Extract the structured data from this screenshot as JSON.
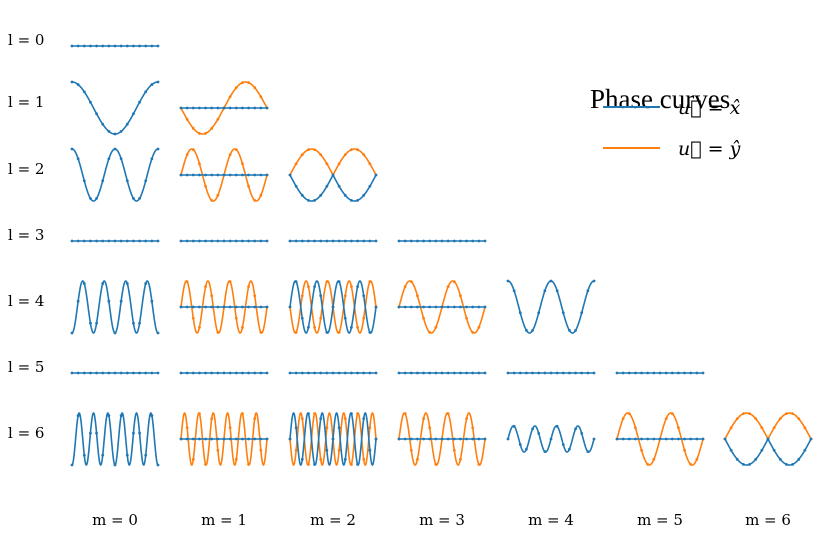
{
  "chart_data": {
    "type": "line",
    "title": "",
    "legend": {
      "title": "Phase curves",
      "placement": "top-right",
      "entries": [
        {
          "label": "u⃗ = x̂",
          "color": "#1f77b4"
        },
        {
          "label": "u⃗ = ŷ",
          "color": "#ff7f0e"
        }
      ]
    },
    "row_labels": [
      "l = 0",
      "l = 1",
      "l = 2",
      "l = 3",
      "l = 4",
      "l = 5",
      "l = 6"
    ],
    "col_labels": [
      "m = 0",
      "m = 1",
      "m = 2",
      "m = 3",
      "m = 4",
      "m = 5",
      "m = 6"
    ],
    "series_colors": {
      "x": "#1f77b4",
      "y": "#ff7f0e"
    },
    "x_range": [
      0,
      1
    ],
    "y_range": [
      -1,
      1
    ],
    "grid": false,
    "panels": [
      {
        "l": 0,
        "m": 0,
        "x": {
          "kind": "flat"
        }
      },
      {
        "l": 1,
        "m": 0,
        "x": {
          "kind": "cos",
          "freq": 1,
          "amp": 1
        }
      },
      {
        "l": 1,
        "m": 1,
        "x": {
          "kind": "flat"
        },
        "y": {
          "kind": "sin",
          "freq": 1,
          "amp": 1,
          "sign": -1
        }
      },
      {
        "l": 2,
        "m": 0,
        "x": {
          "kind": "cos",
          "freq": 2,
          "amp": 1
        }
      },
      {
        "l": 2,
        "m": 1,
        "x": {
          "kind": "flat"
        },
        "y": {
          "kind": "sin",
          "freq": 2,
          "amp": 1,
          "sign": 1
        }
      },
      {
        "l": 2,
        "m": 2,
        "x": {
          "kind": "absSin",
          "freq": 2,
          "amp": 1,
          "sign": -1
        },
        "y": {
          "kind": "absSin",
          "freq": 2,
          "amp": 1,
          "sign": 1
        }
      },
      {
        "l": 3,
        "m": 0,
        "x": {
          "kind": "flat"
        }
      },
      {
        "l": 3,
        "m": 1,
        "x": {
          "kind": "flat"
        }
      },
      {
        "l": 3,
        "m": 2,
        "x": {
          "kind": "flat"
        }
      },
      {
        "l": 3,
        "m": 3,
        "x": {
          "kind": "flat"
        }
      },
      {
        "l": 4,
        "m": 0,
        "x": {
          "kind": "cos",
          "freq": 4,
          "amp": 1,
          "sign": -1
        }
      },
      {
        "l": 4,
        "m": 1,
        "x": {
          "kind": "flat"
        },
        "y": {
          "kind": "sin",
          "freq": 4,
          "amp": 1,
          "sign": 1
        }
      },
      {
        "l": 4,
        "m": 2,
        "x": {
          "kind": "sin",
          "freq": 4,
          "amp": 1,
          "sign": 1
        },
        "y": {
          "kind": "sin",
          "freq": 4,
          "amp": 1,
          "sign": -1
        }
      },
      {
        "l": 4,
        "m": 3,
        "x": {
          "kind": "flat"
        },
        "y": {
          "kind": "sin",
          "freq": 2,
          "amp": 1,
          "sign": 1
        }
      },
      {
        "l": 4,
        "m": 4,
        "x": {
          "kind": "cos",
          "freq": 2,
          "amp": 1
        }
      },
      {
        "l": 5,
        "m": 0,
        "x": {
          "kind": "flat"
        }
      },
      {
        "l": 5,
        "m": 1,
        "x": {
          "kind": "flat"
        }
      },
      {
        "l": 5,
        "m": 2,
        "x": {
          "kind": "flat"
        }
      },
      {
        "l": 5,
        "m": 3,
        "x": {
          "kind": "flat"
        }
      },
      {
        "l": 5,
        "m": 4,
        "x": {
          "kind": "flat"
        }
      },
      {
        "l": 5,
        "m": 5,
        "x": {
          "kind": "flat"
        }
      },
      {
        "l": 6,
        "m": 0,
        "x": {
          "kind": "cos",
          "freq": 6,
          "amp": 1,
          "sign": -1
        }
      },
      {
        "l": 6,
        "m": 1,
        "x": {
          "kind": "flat"
        },
        "y": {
          "kind": "sin",
          "freq": 6,
          "amp": 1,
          "sign": 1
        }
      },
      {
        "l": 6,
        "m": 2,
        "x": {
          "kind": "sin",
          "freq": 6,
          "amp": 1,
          "sign": 1
        },
        "y": {
          "kind": "sin",
          "freq": 6,
          "amp": 1,
          "sign": -1
        }
      },
      {
        "l": 6,
        "m": 3,
        "x": {
          "kind": "flat"
        },
        "y": {
          "kind": "sin",
          "freq": 4,
          "amp": 1,
          "sign": 1
        }
      },
      {
        "l": 6,
        "m": 4,
        "x": {
          "kind": "sin",
          "freq": 4,
          "amp": 0.5,
          "sign": 1
        }
      },
      {
        "l": 6,
        "m": 5,
        "x": {
          "kind": "flat"
        },
        "y": {
          "kind": "sin",
          "freq": 2,
          "amp": 1,
          "sign": 1
        }
      },
      {
        "l": 6,
        "m": 6,
        "x": {
          "kind": "absSin",
          "freq": 2,
          "amp": 1,
          "sign": -1
        },
        "y": {
          "kind": "absSin",
          "freq": 2,
          "amp": 1,
          "sign": 1
        }
      }
    ]
  }
}
